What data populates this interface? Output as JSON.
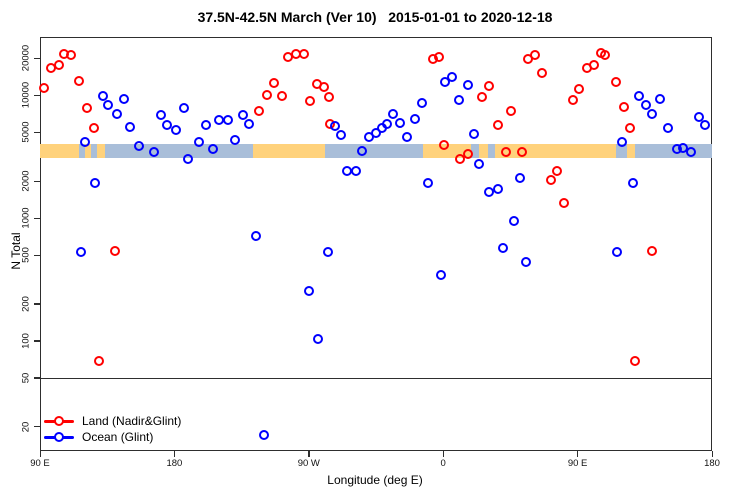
{
  "title": "37.5N-42.5N March (Ver 10)   2015-01-01 to 2020-12-18",
  "axes": {
    "x": {
      "label": "Longitude (deg E)",
      "ticks": [
        {
          "pos": 90,
          "label": "90 E"
        },
        {
          "pos": 180,
          "label": "180"
        },
        {
          "pos": 270,
          "label": "90 W"
        },
        {
          "pos": 360,
          "label": "0"
        },
        {
          "pos": 450,
          "label": "90 E"
        },
        {
          "pos": 540,
          "label": "180"
        }
      ]
    },
    "y": {
      "label": "N Total",
      "scale": "log",
      "ticks": [
        20000,
        10000,
        5000,
        2000,
        1000,
        500,
        200,
        100,
        50,
        20
      ]
    }
  },
  "reference_line_y": 50,
  "legend": {
    "items": [
      {
        "label": "Land (Nadir&Glint)",
        "color": "#ff0000"
      },
      {
        "label": "Ocean (Glint)",
        "color": "#0000ff"
      }
    ]
  },
  "land_ocean_strip": {
    "description": "land/ocean map band drawn across plot at N Total ~3100-4000",
    "value_range": [
      3100,
      4000
    ],
    "land_color": "#ffd27c",
    "ocean_color": "#a9bed9",
    "segments": [
      {
        "type": "land",
        "from": 90,
        "to": 116.1
      },
      {
        "type": "ocean",
        "from": 116.1,
        "to": 120.1
      },
      {
        "type": "land",
        "from": 120.1,
        "to": 124.2
      },
      {
        "type": "ocean",
        "from": 124.2,
        "to": 128.2
      },
      {
        "type": "land",
        "from": 128.2,
        "to": 133.5
      },
      {
        "type": "ocean",
        "from": 133.5,
        "to": 232.6
      },
      {
        "type": "land",
        "from": 232.6,
        "to": 280.8
      },
      {
        "type": "ocean",
        "from": 280.8,
        "to": 346.5
      },
      {
        "type": "land",
        "from": 346.5,
        "to": 378.6
      },
      {
        "type": "ocean",
        "from": 378.6,
        "to": 384.0
      },
      {
        "type": "land",
        "from": 384.0,
        "to": 390.0
      },
      {
        "type": "ocean",
        "from": 390.0,
        "to": 394.7
      },
      {
        "type": "land",
        "from": 394.7,
        "to": 475.8
      },
      {
        "type": "ocean",
        "from": 475.8,
        "to": 483.1
      },
      {
        "type": "land",
        "from": 483.1,
        "to": 488.5
      },
      {
        "type": "ocean",
        "from": 488.5,
        "to": 540
      }
    ]
  },
  "chart_data": {
    "type": "scatter",
    "title": "37.5N-42.5N March (Ver 10)   2015-01-01 to 2020-12-18",
    "xlabel": "Longitude (deg E)",
    "ylabel": "N Total",
    "x_axis_degrees_range": [
      90,
      540
    ],
    "ylim": [
      13,
      29500
    ],
    "y_scale": "log10",
    "marker": "open-circle",
    "series": [
      {
        "name": "Land (Nadir&Glint)",
        "color": "#ff0000",
        "points": [
          [
            93.3,
            11400
          ],
          [
            97.8,
            16600
          ],
          [
            103.4,
            17600
          ],
          [
            106.7,
            21300
          ],
          [
            111.2,
            21000
          ],
          [
            116.8,
            12900
          ],
          [
            121.7,
            7800
          ],
          [
            126.8,
            5400
          ],
          [
            129.7,
            68
          ],
          [
            140.9,
            530
          ],
          [
            237.3,
            7300
          ],
          [
            242.5,
            10000
          ],
          [
            247.4,
            12500
          ],
          [
            252.3,
            9700
          ],
          [
            256.8,
            20200
          ],
          [
            261.9,
            21300
          ],
          [
            267.0,
            21300
          ],
          [
            271.5,
            8900
          ],
          [
            276.0,
            12300
          ],
          [
            280.9,
            11500
          ],
          [
            283.8,
            9500
          ],
          [
            284.9,
            5800
          ],
          [
            353.4,
            19400
          ],
          [
            357.9,
            20200
          ],
          [
            361.2,
            3900
          ],
          [
            371.9,
            3000
          ],
          [
            377.3,
            3300
          ],
          [
            386.2,
            9500
          ],
          [
            391.4,
            11800
          ],
          [
            396.9,
            5700
          ],
          [
            402.5,
            3400
          ],
          [
            405.9,
            7300
          ],
          [
            413.0,
            3400
          ],
          [
            417.0,
            19700
          ],
          [
            422.2,
            21000
          ],
          [
            426.4,
            15100
          ],
          [
            432.7,
            2000
          ],
          [
            436.7,
            2400
          ],
          [
            441.1,
            1300
          ],
          [
            447.6,
            9000
          ],
          [
            451.6,
            11200
          ],
          [
            456.5,
            16600
          ],
          [
            461.2,
            17400
          ],
          [
            466.1,
            22000
          ],
          [
            469.0,
            21000
          ],
          [
            476.2,
            12600
          ],
          [
            481.3,
            7900
          ],
          [
            485.8,
            5400
          ],
          [
            489.1,
            68
          ],
          [
            500.3,
            530
          ]
        ]
      },
      {
        "name": "Ocean (Glint)",
        "color": "#0000ff",
        "points": [
          [
            117.9,
            520
          ],
          [
            120.8,
            4100
          ],
          [
            127.3,
            1900
          ],
          [
            132.9,
            9700
          ],
          [
            136.2,
            8200
          ],
          [
            141.8,
            7000
          ],
          [
            146.5,
            9300
          ],
          [
            150.9,
            5500
          ],
          [
            157.0,
            3800
          ],
          [
            167.0,
            3400
          ],
          [
            171.5,
            6800
          ],
          [
            175.5,
            5700
          ],
          [
            181.5,
            5200
          ],
          [
            187.1,
            7800
          ],
          [
            189.3,
            3000
          ],
          [
            197.1,
            4100
          ],
          [
            201.6,
            5700
          ],
          [
            206.1,
            3600
          ],
          [
            210.5,
            6200
          ],
          [
            216.1,
            6200
          ],
          [
            221.0,
            4300
          ],
          [
            226.2,
            6800
          ],
          [
            230.6,
            5800
          ],
          [
            235.1,
            710
          ],
          [
            240.7,
            17
          ],
          [
            270.3,
            250
          ],
          [
            276.4,
            103
          ],
          [
            283.1,
            520
          ],
          [
            288.2,
            5600
          ],
          [
            292.0,
            4700
          ],
          [
            295.8,
            2400
          ],
          [
            302.1,
            2400
          ],
          [
            306.1,
            3450
          ],
          [
            310.6,
            4500
          ],
          [
            315.5,
            4900
          ],
          [
            319.5,
            5400
          ],
          [
            322.6,
            5800
          ],
          [
            327.1,
            6900
          ],
          [
            331.6,
            5900
          ],
          [
            336.0,
            4500
          ],
          [
            341.6,
            6300
          ],
          [
            346.3,
            8600
          ],
          [
            350.1,
            1900
          ],
          [
            359.0,
            340
          ],
          [
            361.9,
            12600
          ],
          [
            366.4,
            13900
          ],
          [
            371.3,
            9000
          ],
          [
            376.8,
            12000
          ],
          [
            381.3,
            4800
          ],
          [
            384.2,
            2700
          ],
          [
            391.4,
            1600
          ],
          [
            397.0,
            1700
          ],
          [
            400.7,
            560
          ],
          [
            408.1,
            930
          ],
          [
            411.5,
            2100
          ],
          [
            415.9,
            430
          ],
          [
            476.9,
            520
          ],
          [
            480.2,
            4100
          ],
          [
            487.4,
            1900
          ],
          [
            491.8,
            9700
          ],
          [
            495.9,
            8200
          ],
          [
            500.3,
            7000
          ],
          [
            505.7,
            9300
          ],
          [
            510.8,
            5400
          ],
          [
            516.8,
            3600
          ],
          [
            521.3,
            3700
          ],
          [
            526.5,
            3400
          ],
          [
            532.0,
            6600
          ],
          [
            536.0,
            5700
          ]
        ]
      }
    ]
  }
}
